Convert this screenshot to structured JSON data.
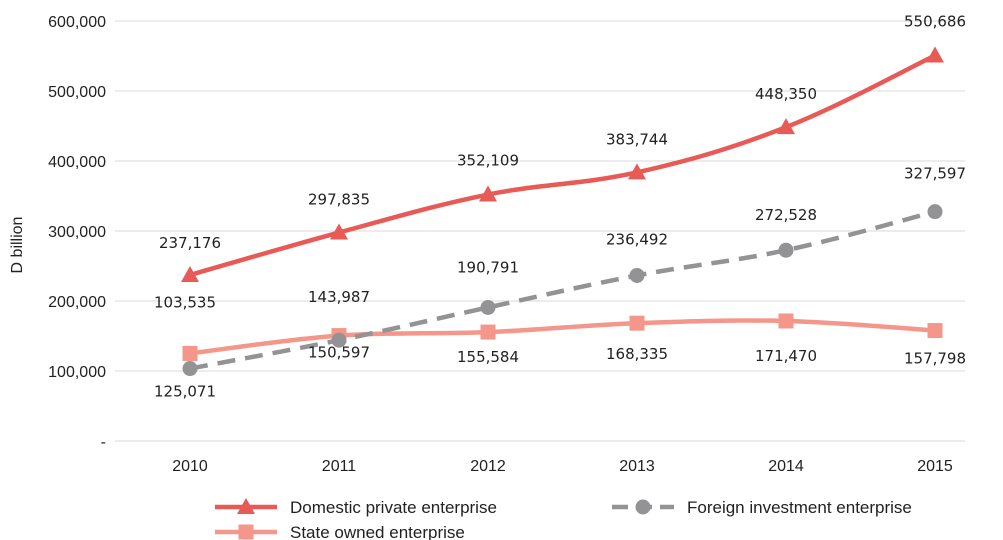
{
  "chart_data": {
    "type": "line",
    "ylabel": "D billion",
    "xlabel": "",
    "categories": [
      "2010",
      "2011",
      "2012",
      "2013",
      "2014",
      "2015"
    ],
    "ylim": [
      0,
      600000
    ],
    "yticks": [
      0,
      100000,
      200000,
      300000,
      400000,
      500000,
      600000
    ],
    "ytick_labels": [
      "-",
      "100,000",
      "200,000",
      "300,000",
      "400,000",
      "500,000",
      "600,000"
    ],
    "grid": "horizontal",
    "legend_position": "bottom",
    "series": [
      {
        "name": "Domestic private enterprise",
        "values": [
          237176,
          297835,
          352109,
          383744,
          448350,
          550686
        ],
        "labels": [
          "237,176",
          "297,835",
          "352,109",
          "383,744",
          "448,350",
          "550,686"
        ],
        "color": "#E85A55",
        "marker": "triangle",
        "dash": "solid"
      },
      {
        "name": "Foreign investment enterprise",
        "values": [
          103535,
          143987,
          190791,
          236492,
          272528,
          327597
        ],
        "labels": [
          "103,535",
          "143,987",
          "190,791",
          "236,492",
          "272,528",
          "327,597"
        ],
        "color": "#939396",
        "marker": "circle",
        "dash": "dashed"
      },
      {
        "name": "State owned enterprise",
        "values": [
          125071,
          150597,
          155584,
          168335,
          171470,
          157798
        ],
        "labels": [
          "125,071",
          "150,597",
          "155,584",
          "168,335",
          "171,470",
          "157,798"
        ],
        "color": "#F4968A",
        "marker": "square",
        "dash": "solid"
      }
    ]
  }
}
